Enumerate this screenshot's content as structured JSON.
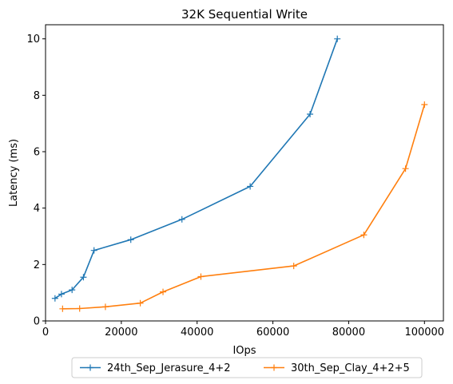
{
  "chart_data": {
    "type": "line",
    "title": "32K  Sequential Write",
    "xlabel": "IOps",
    "ylabel": "Latency (ms)",
    "xlim": [
      0,
      105000
    ],
    "ylim": [
      0,
      10.5
    ],
    "xticks": [
      0,
      20000,
      40000,
      60000,
      80000,
      100000
    ],
    "yticks": [
      0,
      2,
      4,
      6,
      8,
      10
    ],
    "grid": false,
    "legend_position": "bottom-center-outside",
    "series": [
      {
        "name": "24th_Sep_Jerasure_4+2",
        "color": "#1f77b4",
        "marker": "+",
        "x": [
          2500,
          4200,
          7000,
          10000,
          12800,
          22500,
          36000,
          54000,
          69800,
          77000
        ],
        "y": [
          0.8,
          0.95,
          1.1,
          1.55,
          2.5,
          2.88,
          3.6,
          4.77,
          7.33,
          10.0
        ]
      },
      {
        "name": "30th_Sep_Clay_4+2+5",
        "color": "#ff7f0e",
        "marker": "+",
        "x": [
          4500,
          9000,
          15800,
          25000,
          31000,
          41000,
          65500,
          84000,
          95000,
          100000
        ],
        "y": [
          0.43,
          0.44,
          0.5,
          0.63,
          1.03,
          1.57,
          1.95,
          3.05,
          5.4,
          7.67
        ]
      }
    ]
  }
}
